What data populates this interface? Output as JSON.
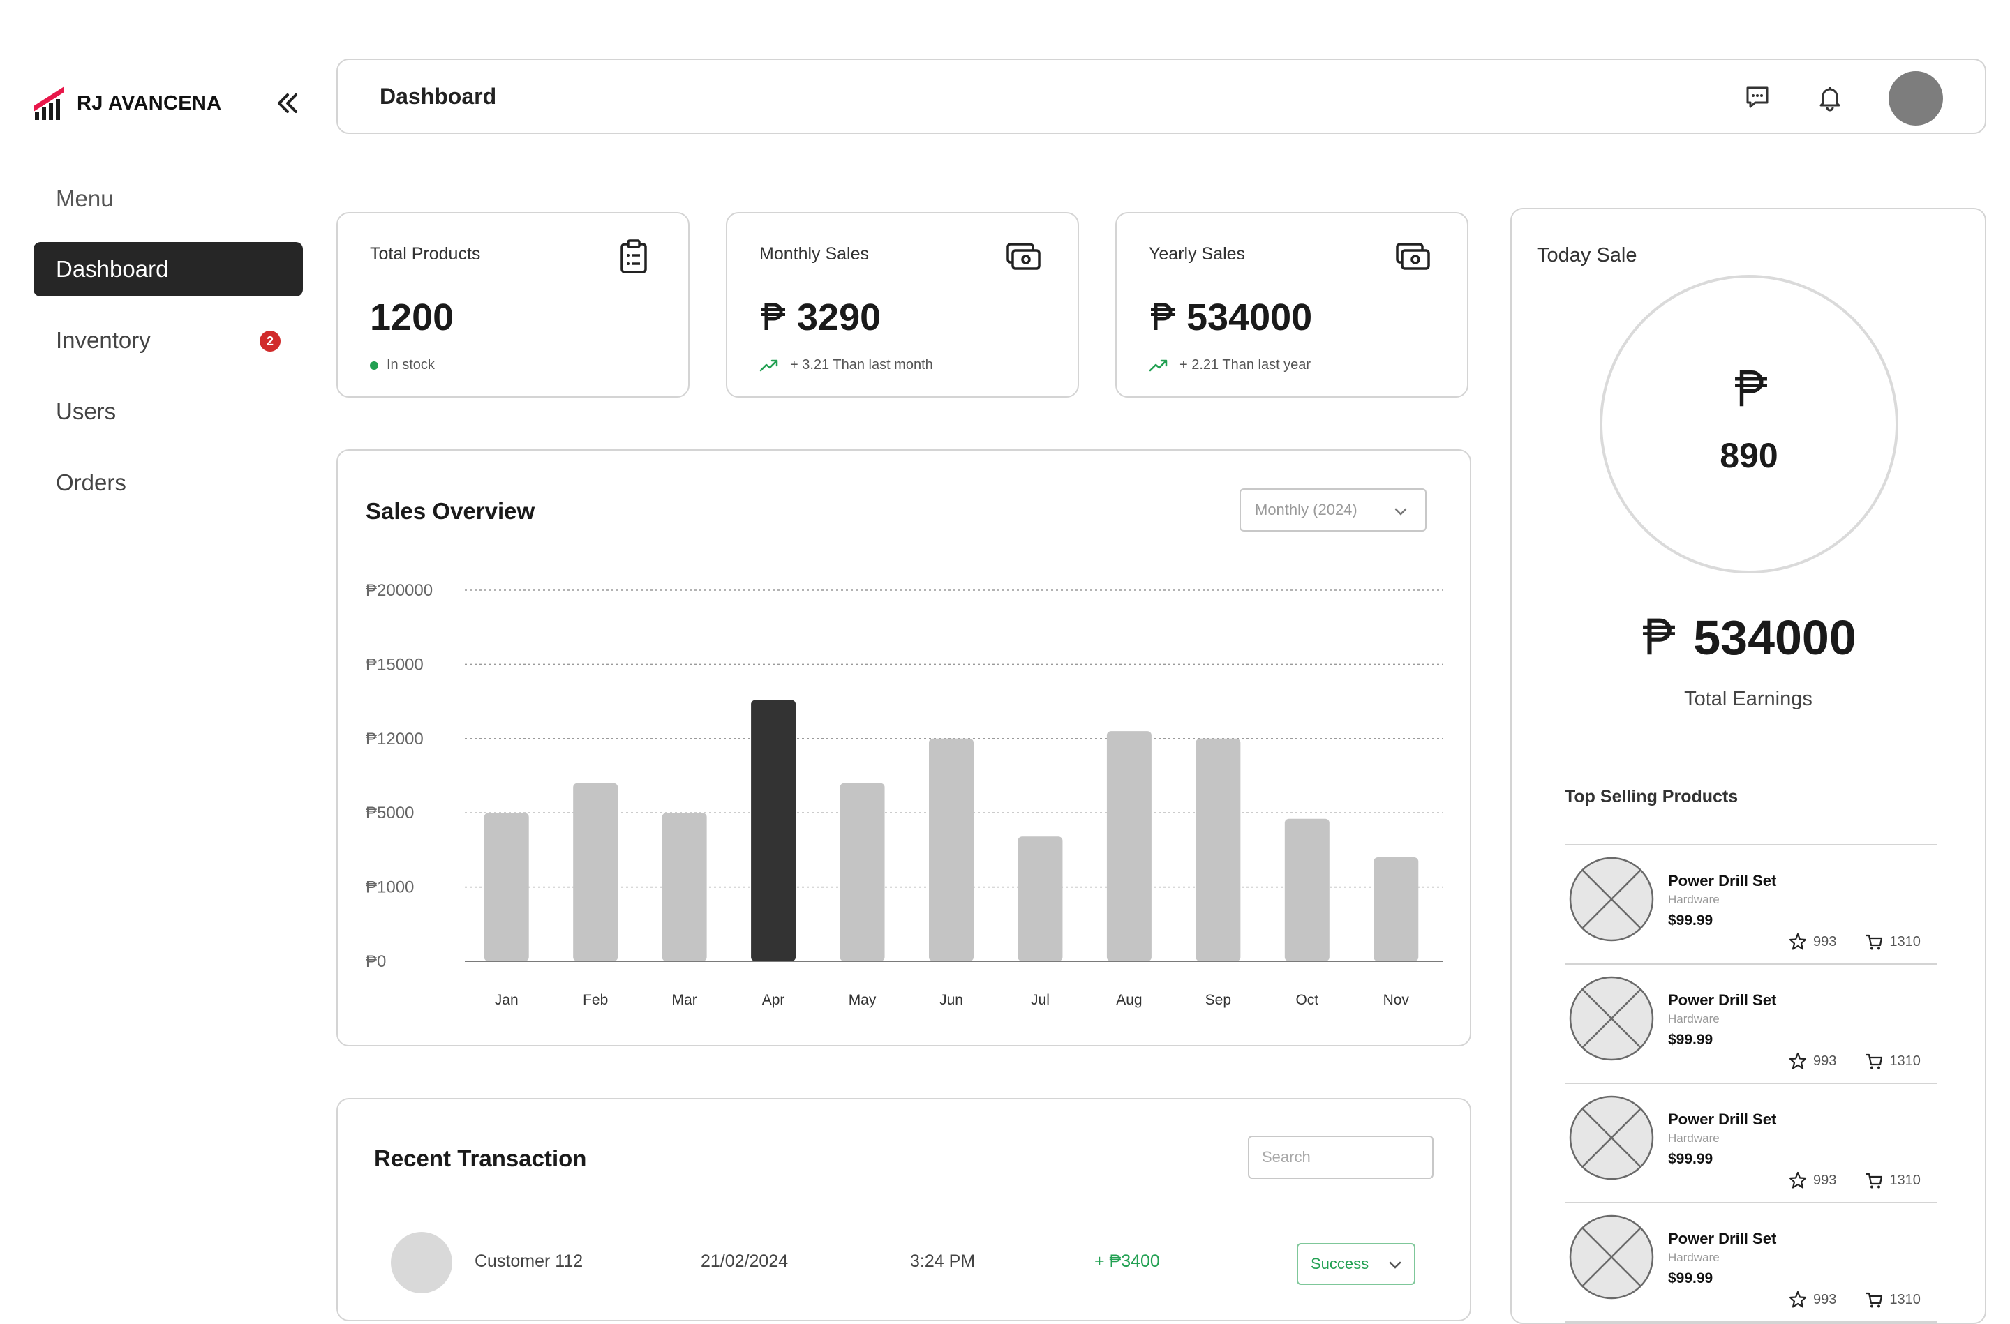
{
  "brand": {
    "name": "RJ AVANCENA",
    "accent_color": "#e8174a"
  },
  "sidebar": {
    "collapse_icon": "double-chevron-left-icon",
    "menu_title": "Menu",
    "items": [
      {
        "label": "Dashboard",
        "active": true
      },
      {
        "label": "Inventory",
        "badge": "2"
      },
      {
        "label": "Users"
      },
      {
        "label": "Orders"
      }
    ]
  },
  "header": {
    "title": "Dashboard",
    "icons": [
      "chat-icon",
      "bell-icon",
      "avatar"
    ]
  },
  "stats": [
    {
      "label": "Total Products",
      "value": "1200",
      "sub": "In stock",
      "icon": "clipboard-list-icon"
    },
    {
      "label": "Monthly Sales",
      "value": "3290",
      "sub": "+ 3.21 Than last month",
      "icon": "cash-icon"
    },
    {
      "label": "Yearly Sales",
      "value": "534000",
      "sub": "+ 2.21 Than last year",
      "icon": "cash-icon"
    }
  ],
  "sales_overview": {
    "title": "Sales Overview",
    "period": "Monthly (2024)"
  },
  "chart_data": {
    "type": "bar",
    "title": "Sales Overview",
    "categories": [
      "Jan",
      "Feb",
      "Mar",
      "Apr",
      "May",
      "Jun",
      "Jul",
      "Aug",
      "Sep",
      "Oct",
      "Nov"
    ],
    "y_ticks": [
      "₱200000",
      "₱15000",
      "₱12000",
      "₱5000",
      "₱1000",
      "₱0"
    ],
    "values": [
      2.0,
      2.4,
      2.0,
      3.52,
      2.4,
      3.0,
      1.68,
      3.1,
      3.0,
      1.92,
      1.4
    ],
    "value_scale_note": "heights relative to tick index 0..5 (₱0 .. ₱200000)",
    "highlight_index": 3,
    "colors": {
      "bar": "#c4c4c4",
      "highlight": "#333333"
    },
    "grid": true,
    "ylim": [
      0,
      5
    ]
  },
  "transactions": {
    "title": "Recent Transaction",
    "search_placeholder": "Search",
    "rows": [
      {
        "customer": "Customer 112",
        "date": "21/02/2024",
        "time": "3:24 PM",
        "amount": "+ ₱3400",
        "status": "Success"
      }
    ]
  },
  "today_sale": {
    "title": "Today Sale",
    "value": "890",
    "total_earnings": "534000",
    "total_earnings_label": "Total Earnings"
  },
  "top_selling": {
    "title": "Top Selling Products",
    "items": [
      {
        "name": "Power Drill Set",
        "category": "Hardware",
        "price": "$99.99",
        "rating": "993",
        "orders": "1310"
      },
      {
        "name": "Power Drill Set",
        "category": "Hardware",
        "price": "$99.99",
        "rating": "993",
        "orders": "1310"
      },
      {
        "name": "Power Drill Set",
        "category": "Hardware",
        "price": "$99.99",
        "rating": "993",
        "orders": "1310"
      },
      {
        "name": "Power Drill Set",
        "category": "Hardware",
        "price": "$99.99",
        "rating": "993",
        "orders": "1310"
      }
    ]
  }
}
